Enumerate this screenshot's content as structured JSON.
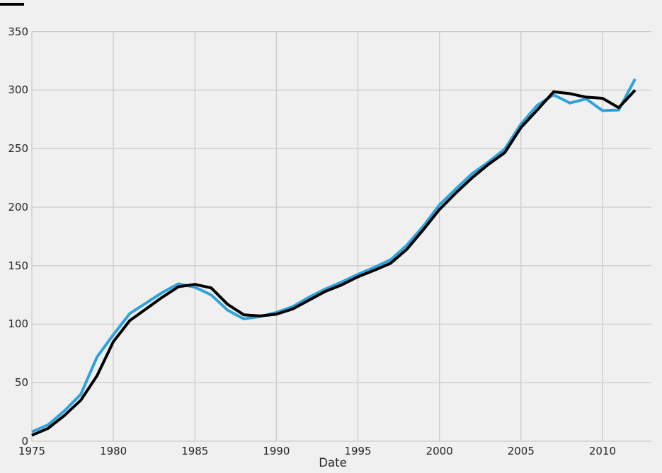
{
  "chart_data": {
    "type": "line",
    "title": "",
    "xlabel": "Date",
    "ylabel": "",
    "legend": "none",
    "grid": true,
    "background_color": "#f0f0f0",
    "grid_color": "#cbcbcb",
    "text_color": "#262626",
    "xlim": [
      1975,
      2013
    ],
    "ylim": [
      0,
      350
    ],
    "x_tick_labels": [
      "1975",
      "1980",
      "1985",
      "1990",
      "1995",
      "2000",
      "2005",
      "2010"
    ],
    "x_ticks": [
      1975,
      1980,
      1985,
      1990,
      1995,
      2000,
      2005,
      2010
    ],
    "y_tick_labels": [
      "0",
      "50",
      "100",
      "150",
      "200",
      "250",
      "300",
      "350"
    ],
    "y_ticks": [
      0,
      50,
      100,
      150,
      200,
      250,
      300,
      350
    ],
    "x": [
      1975,
      1976,
      1977,
      1978,
      1979,
      1980,
      1981,
      1982,
      1983,
      1984,
      1985,
      1986,
      1987,
      1988,
      1989,
      1990,
      1991,
      1992,
      1993,
      1994,
      1995,
      1996,
      1997,
      1998,
      1999,
      2000,
      2001,
      2002,
      2003,
      2004,
      2005,
      2006,
      2007,
      2008,
      2009,
      2010,
      2011,
      2012
    ],
    "series": [
      {
        "name": "blue",
        "color": "#30a2da",
        "line_width": 4,
        "values": [
          8,
          14,
          26,
          40,
          72,
          91,
          109,
          118,
          127,
          134.5,
          131.5,
          125,
          112,
          104.5,
          106.5,
          110,
          115,
          123,
          130,
          136,
          142.5,
          148.5,
          155,
          167.5,
          183.5,
          202,
          215.5,
          228.5,
          238.5,
          249.5,
          271,
          287,
          296,
          289,
          292.5,
          282.5,
          283,
          309.5
        ]
      },
      {
        "name": "black",
        "color": "#000000",
        "line_width": 4,
        "values": [
          5,
          11,
          22,
          35,
          56,
          85,
          103,
          113,
          123,
          132,
          134,
          131,
          117,
          108,
          107,
          108.5,
          113,
          120.5,
          128,
          133.5,
          140.5,
          146,
          152,
          164,
          180.5,
          198,
          212,
          225,
          236.5,
          246.5,
          268,
          283,
          298.5,
          297,
          294,
          293,
          285,
          300
        ]
      }
    ]
  }
}
